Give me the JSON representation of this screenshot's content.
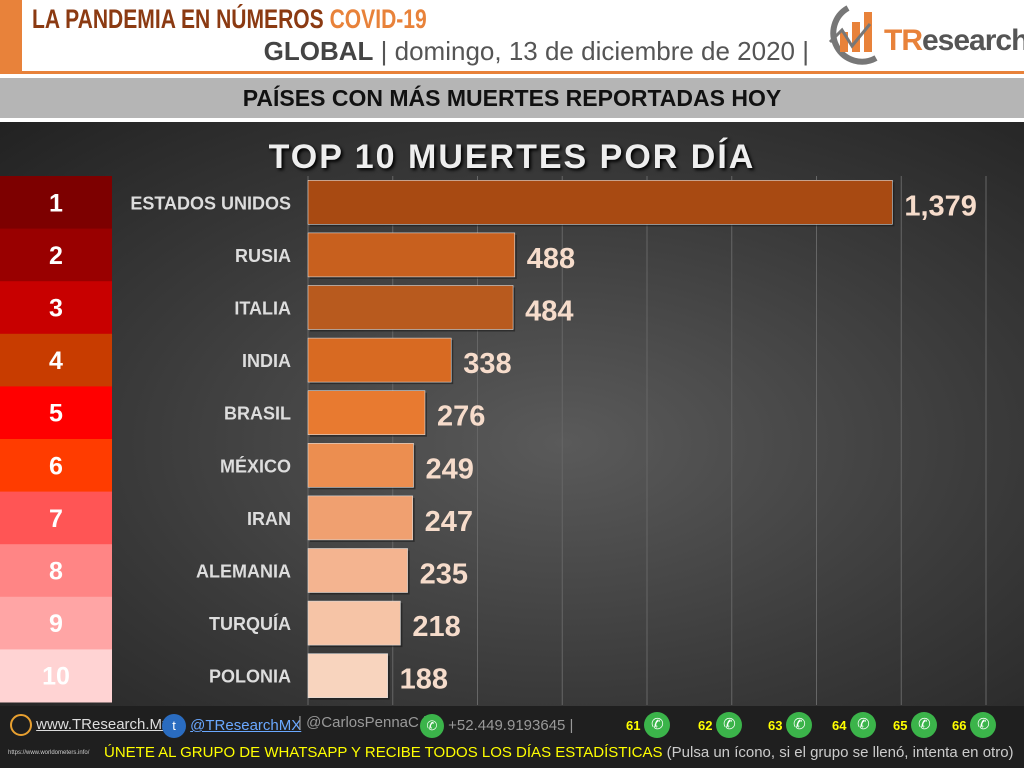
{
  "header": {
    "title": "LA PANDEMIA EN NÚMEROS",
    "title_accent": "COVID-19",
    "scope": "GLOBAL",
    "date": "| domingo, 13 de diciembre de 2020 |",
    "logo_text": "TResearch"
  },
  "banner": "PAÍSES CON MÁS MUERTES REPORTADAS HOY",
  "chart_data": {
    "type": "bar",
    "orientation": "horizontal",
    "title": "TOP 10 MUERTES POR DÍA",
    "categories": [
      "ESTADOS UNIDOS",
      "RUSIA",
      "ITALIA",
      "INDIA",
      "BRASIL",
      "MÉXICO",
      "IRAN",
      "ALEMANIA",
      "TURQUÍA",
      "POLONIA"
    ],
    "ranks": [
      "1",
      "2",
      "3",
      "4",
      "5",
      "6",
      "7",
      "8",
      "9",
      "10"
    ],
    "values": [
      1379,
      488,
      484,
      338,
      276,
      249,
      247,
      235,
      218,
      188
    ],
    "value_labels": [
      "1,379",
      "488",
      "484",
      "338",
      "276",
      "249",
      "247",
      "235",
      "218",
      "188"
    ],
    "xlim": [
      0,
      1600
    ],
    "grid": true,
    "rank_colors": [
      "#7d0000",
      "#990000",
      "#c80000",
      "#c83c00",
      "#ff0000",
      "#ff3c00",
      "#ff5555",
      "#ff8585",
      "#ffa5a5",
      "#ffd3d3"
    ],
    "bar_colors": [
      "#a84a12",
      "#c8601e",
      "#b85a1e",
      "#d86a22",
      "#e87a30",
      "#ec8e50",
      "#f0a070",
      "#f4b490",
      "#f6c4a6",
      "#f8d4be"
    ]
  },
  "footer": {
    "web": "www.TResearch.Mx",
    "twitter": "@TResearchMX",
    "handle": "| @CarlosPennaC |",
    "phone": "+52.449.9193645 |",
    "groups": [
      "61",
      "62",
      "63",
      "64",
      "65",
      "66"
    ],
    "cta": "ÚNETE AL GRUPO DE WHATSAPP Y RECIBE TODOS LOS DÍAS ESTADÍSTICAS",
    "cta_note": "(Pulsa un ícono, si el grupo se llenó, intenta en otro)",
    "source": "https://www.worldometers.info/"
  }
}
